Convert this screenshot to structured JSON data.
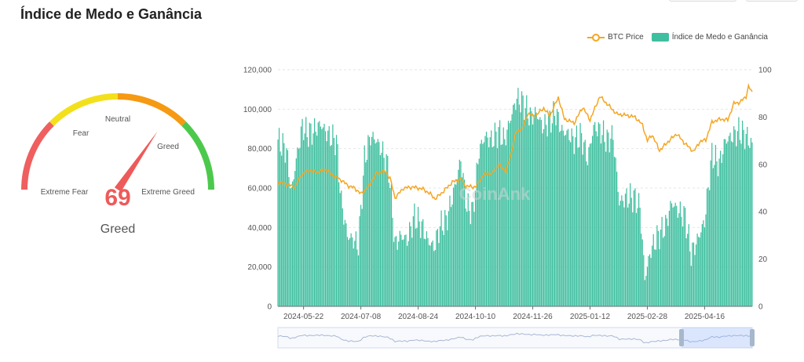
{
  "page": {
    "title": "Índice de Medo e Ganância"
  },
  "gauge": {
    "value": "69",
    "classification": "Greed",
    "labels": {
      "extreme_fear": "Extreme Fear",
      "fear": "Fear",
      "neutral": "Neutral",
      "greed": "Greed",
      "extreme_greed": "Extreme Greed"
    },
    "colors": [
      "#ef5f5f",
      "#f3e01c",
      "#f59a12",
      "#4cc94c"
    ]
  },
  "legend": {
    "btc_label": "BTC Price",
    "index_label": "Índice de Medo e Ganância"
  },
  "watermark": "CoinAnk",
  "colors": {
    "btc_line": "#f5a623",
    "index_bar": "#3fbf9f"
  },
  "chart_data": {
    "type": "bar",
    "x_tick_labels": [
      "2024-05-22",
      "2024-07-08",
      "2024-08-24",
      "2024-10-10",
      "2024-11-26",
      "2025-01-12",
      "2025-02-28",
      "2025-04-16"
    ],
    "x_range": [
      "2024-05-01",
      "2025-05-25"
    ],
    "y_left": {
      "ticks": [
        "0",
        "20,000",
        "40,000",
        "60,000",
        "80,000",
        "100,000",
        "120,000"
      ],
      "range": [
        0,
        120000
      ]
    },
    "y_right": {
      "ticks": [
        "0",
        "20",
        "40",
        "60",
        "80",
        "100"
      ],
      "range": [
        0,
        100
      ]
    },
    "grid": true,
    "legend_position": "top-right",
    "series": [
      {
        "name": "Índice de Medo e Ganância",
        "kind": "bar",
        "axis": "right",
        "points": [
          [
            "2024-05-01",
            70
          ],
          [
            "2024-05-08",
            66
          ],
          [
            "2024-05-12",
            48
          ],
          [
            "2024-05-16",
            62
          ],
          [
            "2024-05-21",
            76
          ],
          [
            "2024-05-25",
            73
          ],
          [
            "2024-05-30",
            74
          ],
          [
            "2024-06-05",
            77
          ],
          [
            "2024-06-12",
            72
          ],
          [
            "2024-06-18",
            70
          ],
          [
            "2024-06-22",
            44
          ],
          [
            "2024-06-27",
            30
          ],
          [
            "2024-07-02",
            28
          ],
          [
            "2024-07-06",
            26
          ],
          [
            "2024-07-11",
            62
          ],
          [
            "2024-07-16",
            72
          ],
          [
            "2024-07-21",
            70
          ],
          [
            "2024-07-26",
            65
          ],
          [
            "2024-07-31",
            58
          ],
          [
            "2024-08-05",
            26
          ],
          [
            "2024-08-10",
            30
          ],
          [
            "2024-08-15",
            28
          ],
          [
            "2024-08-21",
            38
          ],
          [
            "2024-08-27",
            34
          ],
          [
            "2024-09-01",
            28
          ],
          [
            "2024-09-06",
            25
          ],
          [
            "2024-09-11",
            34
          ],
          [
            "2024-09-16",
            36
          ],
          [
            "2024-09-22",
            48
          ],
          [
            "2024-09-28",
            62
          ],
          [
            "2024-10-03",
            42
          ],
          [
            "2024-10-08",
            40
          ],
          [
            "2024-10-13",
            66
          ],
          [
            "2024-10-18",
            72
          ],
          [
            "2024-10-23",
            70
          ],
          [
            "2024-10-29",
            74
          ],
          [
            "2024-11-03",
            70
          ],
          [
            "2024-11-08",
            80
          ],
          [
            "2024-11-13",
            88
          ],
          [
            "2024-11-18",
            86
          ],
          [
            "2024-11-24",
            80
          ],
          [
            "2024-11-29",
            82
          ],
          [
            "2024-12-04",
            76
          ],
          [
            "2024-12-10",
            78
          ],
          [
            "2024-12-15",
            82
          ],
          [
            "2024-12-20",
            74
          ],
          [
            "2024-12-25",
            73
          ],
          [
            "2024-12-30",
            70
          ],
          [
            "2025-01-05",
            72
          ],
          [
            "2025-01-10",
            62
          ],
          [
            "2025-01-15",
            76
          ],
          [
            "2025-01-21",
            74
          ],
          [
            "2025-01-26",
            70
          ],
          [
            "2025-01-31",
            72
          ],
          [
            "2025-02-05",
            44
          ],
          [
            "2025-02-11",
            46
          ],
          [
            "2025-02-17",
            46
          ],
          [
            "2025-02-22",
            42
          ],
          [
            "2025-02-26",
            12
          ],
          [
            "2025-03-03",
            24
          ],
          [
            "2025-03-09",
            30
          ],
          [
            "2025-03-15",
            34
          ],
          [
            "2025-03-20",
            44
          ],
          [
            "2025-03-26",
            40
          ],
          [
            "2025-03-31",
            38
          ],
          [
            "2025-04-05",
            22
          ],
          [
            "2025-04-10",
            28
          ],
          [
            "2025-04-16",
            36
          ],
          [
            "2025-04-22",
            64
          ],
          [
            "2025-04-28",
            60
          ],
          [
            "2025-05-03",
            70
          ],
          [
            "2025-05-09",
            72
          ],
          [
            "2025-05-14",
            74
          ],
          [
            "2025-05-20",
            72
          ],
          [
            "2025-05-25",
            68
          ]
        ]
      },
      {
        "name": "BTC Price",
        "kind": "line",
        "axis": "left",
        "points": [
          [
            "2024-05-01",
            63000
          ],
          [
            "2024-05-08",
            62000
          ],
          [
            "2024-05-15",
            60500
          ],
          [
            "2024-05-20",
            66500
          ],
          [
            "2024-05-26",
            69000
          ],
          [
            "2024-06-02",
            68000
          ],
          [
            "2024-06-09",
            69500
          ],
          [
            "2024-06-15",
            66500
          ],
          [
            "2024-06-22",
            64000
          ],
          [
            "2024-06-28",
            61000
          ],
          [
            "2024-07-03",
            60000
          ],
          [
            "2024-07-08",
            57000
          ],
          [
            "2024-07-14",
            60500
          ],
          [
            "2024-07-21",
            67500
          ],
          [
            "2024-07-28",
            68500
          ],
          [
            "2024-08-01",
            65000
          ],
          [
            "2024-08-05",
            55000
          ],
          [
            "2024-08-12",
            60000
          ],
          [
            "2024-08-20",
            60500
          ],
          [
            "2024-08-28",
            59500
          ],
          [
            "2024-09-03",
            57000
          ],
          [
            "2024-09-07",
            54500
          ],
          [
            "2024-09-14",
            58500
          ],
          [
            "2024-09-21",
            63000
          ],
          [
            "2024-09-28",
            64500
          ],
          [
            "2024-10-02",
            61000
          ],
          [
            "2024-10-10",
            60500
          ],
          [
            "2024-10-17",
            67000
          ],
          [
            "2024-10-24",
            67500
          ],
          [
            "2024-10-29",
            72000
          ],
          [
            "2024-11-04",
            68500
          ],
          [
            "2024-11-08",
            76500
          ],
          [
            "2024-11-12",
            88000
          ],
          [
            "2024-11-18",
            90500
          ],
          [
            "2024-11-22",
            98000
          ],
          [
            "2024-11-27",
            96000
          ],
          [
            "2024-12-05",
            100500
          ],
          [
            "2024-12-10",
            96500
          ],
          [
            "2024-12-17",
            106000
          ],
          [
            "2024-12-22",
            95000
          ],
          [
            "2024-12-30",
            93000
          ],
          [
            "2025-01-06",
            101000
          ],
          [
            "2025-01-12",
            94500
          ],
          [
            "2025-01-20",
            106500
          ],
          [
            "2025-01-27",
            102000
          ],
          [
            "2025-02-03",
            97500
          ],
          [
            "2025-02-10",
            97000
          ],
          [
            "2025-02-18",
            96000
          ],
          [
            "2025-02-24",
            92000
          ],
          [
            "2025-02-28",
            84000
          ],
          [
            "2025-03-04",
            87000
          ],
          [
            "2025-03-10",
            79000
          ],
          [
            "2025-03-17",
            83500
          ],
          [
            "2025-03-24",
            87500
          ],
          [
            "2025-03-31",
            82500
          ],
          [
            "2025-04-07",
            78500
          ],
          [
            "2025-04-12",
            83500
          ],
          [
            "2025-04-17",
            84500
          ],
          [
            "2025-04-22",
            93500
          ],
          [
            "2025-04-29",
            95000
          ],
          [
            "2025-05-05",
            94500
          ],
          [
            "2025-05-10",
            103000
          ],
          [
            "2025-05-15",
            103500
          ],
          [
            "2025-05-20",
            106500
          ],
          [
            "2025-05-22",
            111500
          ],
          [
            "2025-05-25",
            108500
          ]
        ]
      }
    ]
  }
}
